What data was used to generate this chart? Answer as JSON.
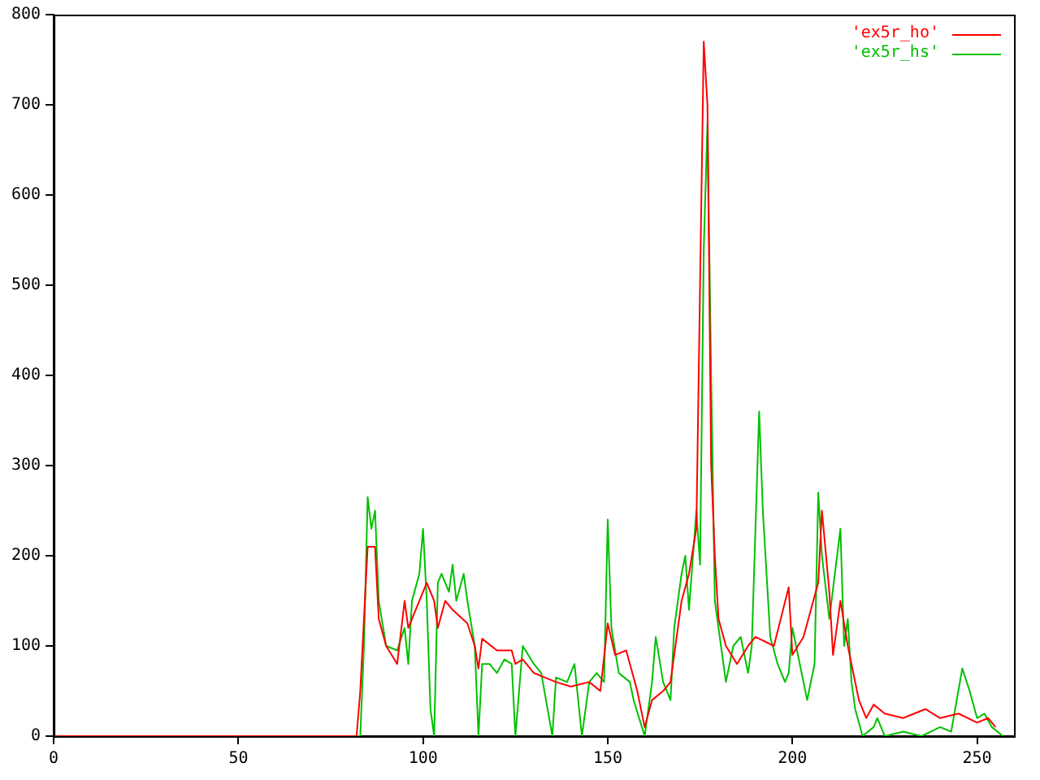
{
  "chart_data": {
    "type": "line",
    "xlim": [
      0,
      260
    ],
    "xticks": [
      0,
      50,
      100,
      150,
      200,
      250
    ],
    "ylim": [
      0,
      800
    ],
    "yticks": [
      0,
      100,
      200,
      300,
      400,
      500,
      600,
      700,
      800
    ],
    "grid": false,
    "legend": "top right",
    "marker": "none",
    "line_style": "solid",
    "series": [
      {
        "name": "'ex5r_ho'",
        "color": "#ff0000",
        "x": [
          0,
          82,
          83,
          85,
          87,
          88,
          90,
          93,
          95,
          96,
          100,
          101,
          103,
          104,
          106,
          108,
          112,
          114,
          115,
          116,
          120,
          124,
          125,
          127,
          130,
          133,
          136,
          140,
          145,
          148,
          150,
          152,
          155,
          158,
          160,
          162,
          165,
          167,
          170,
          172,
          174,
          175,
          176,
          177,
          178,
          179,
          180,
          182,
          185,
          188,
          190,
          195,
          199,
          200,
          203,
          207,
          208,
          210,
          211,
          213,
          215,
          218,
          220,
          222,
          225,
          230,
          236,
          240,
          245,
          250,
          253,
          255
        ],
        "values": [
          0,
          0,
          50,
          210,
          210,
          130,
          100,
          80,
          150,
          120,
          160,
          170,
          150,
          120,
          150,
          140,
          125,
          100,
          75,
          108,
          95,
          95,
          80,
          85,
          70,
          65,
          60,
          55,
          60,
          50,
          125,
          90,
          95,
          50,
          10,
          40,
          50,
          60,
          150,
          180,
          230,
          500,
          770,
          700,
          300,
          200,
          130,
          100,
          80,
          100,
          110,
          100,
          165,
          90,
          110,
          170,
          250,
          160,
          90,
          150,
          100,
          40,
          20,
          35,
          25,
          20,
          30,
          20,
          25,
          15,
          20,
          10
        ]
      },
      {
        "name": "'ex5r_hs'",
        "color": "#00c000",
        "x": [
          0,
          83,
          84,
          85,
          86,
          87,
          88,
          90,
          93,
          95,
          96,
          97,
          99,
          100,
          101,
          102,
          103,
          104,
          105,
          107,
          108,
          109,
          111,
          112,
          114,
          115,
          116,
          118,
          120,
          122,
          124,
          125,
          127,
          130,
          132,
          135,
          136,
          139,
          141,
          143,
          145,
          147,
          149,
          150,
          151,
          153,
          156,
          157,
          160,
          162,
          163,
          165,
          167,
          168,
          170,
          171,
          172,
          174,
          175,
          176,
          177,
          178,
          179,
          180,
          182,
          184,
          186,
          188,
          189,
          191,
          192,
          194,
          196,
          198,
          199,
          200,
          202,
          204,
          206,
          207,
          208,
          210,
          213,
          214,
          215,
          216,
          217,
          219,
          222,
          223,
          225,
          230,
          235,
          240,
          243,
          246,
          248,
          250,
          252,
          254,
          257
        ],
        "values": [
          0,
          0,
          100,
          265,
          230,
          250,
          150,
          100,
          95,
          120,
          80,
          150,
          180,
          230,
          150,
          30,
          0,
          170,
          180,
          160,
          190,
          150,
          180,
          150,
          100,
          0,
          80,
          80,
          70,
          85,
          80,
          0,
          100,
          80,
          70,
          0,
          65,
          60,
          80,
          0,
          60,
          70,
          60,
          240,
          120,
          70,
          60,
          40,
          0,
          60,
          110,
          60,
          40,
          120,
          180,
          200,
          140,
          250,
          190,
          540,
          680,
          400,
          150,
          120,
          60,
          100,
          110,
          70,
          100,
          360,
          250,
          110,
          80,
          60,
          70,
          120,
          80,
          40,
          80,
          270,
          200,
          130,
          230,
          100,
          130,
          60,
          30,
          0,
          10,
          20,
          0,
          5,
          0,
          10,
          5,
          75,
          50,
          20,
          25,
          10,
          0
        ]
      }
    ]
  }
}
